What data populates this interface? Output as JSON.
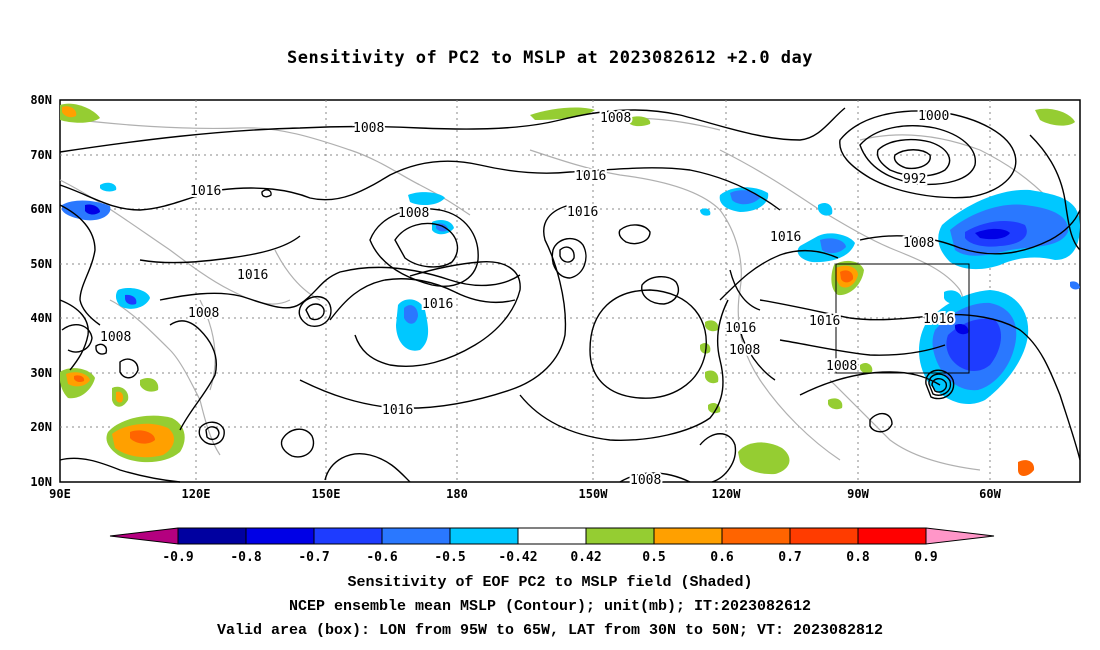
{
  "title": "Sensitivity of PC2 to MSLP at 2023082612 +2.0 day",
  "lat_labels": [
    "80N",
    "70N",
    "60N",
    "50N",
    "40N",
    "30N",
    "20N",
    "10N"
  ],
  "lon_labels": [
    "90E",
    "120E",
    "150E",
    "180",
    "150W",
    "120W",
    "90W",
    "60W"
  ],
  "contour_labels": [
    "1008",
    "1008",
    "1016",
    "1008",
    "1016",
    "1016",
    "1016",
    "1016",
    "1016",
    "1008",
    "1016",
    "1016",
    "1008",
    "1008",
    "1016",
    "1016",
    "1008",
    "1000",
    "992",
    "1008",
    "1008"
  ],
  "colorbar_labels": [
    "-0.9",
    "-0.8",
    "-0.7",
    "-0.6",
    "-0.5",
    "-0.42",
    "0.42",
    "0.5",
    "0.6",
    "0.7",
    "0.8",
    "0.9"
  ],
  "colorbar_colors": [
    "#b4007f",
    "#0000a0",
    "#0000e6",
    "#1e3cff",
    "#2a78ff",
    "#00c8ff",
    "#ffffff",
    "#95cd32",
    "#ffa000",
    "#ff6400",
    "#ff3c00",
    "#ff0000",
    "#ff96c8"
  ],
  "footer": {
    "line1": "Sensitivity of EOF PC2 to MSLP field (Shaded)",
    "line2": "NCEP ensemble mean MSLP (Contour); unit(mb); IT:2023082612",
    "line3": "Valid area (box): LON from 95W to 65W, LAT from 30N to 50N; VT: 2023082812"
  }
}
